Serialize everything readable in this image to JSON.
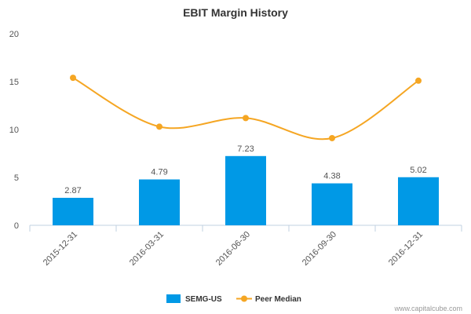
{
  "chart_data": {
    "type": "bar",
    "title": "EBIT Margin History",
    "categories": [
      "2015-12-31",
      "2016-03-31",
      "2016-06-30",
      "2016-09-30",
      "2016-12-31"
    ],
    "ylim": [
      0,
      20
    ],
    "yticks": [
      0,
      5,
      10,
      15,
      20
    ],
    "grid": false,
    "legend_position": "bottom-center",
    "series": [
      {
        "name": "SEMG-US",
        "kind": "bar",
        "color": "#0099e6",
        "values": [
          2.87,
          4.79,
          7.23,
          4.38,
          5.02
        ],
        "labels": [
          "2.87",
          "4.79",
          "7.23",
          "4.38",
          "5.02"
        ]
      },
      {
        "name": "Peer Median",
        "kind": "line",
        "color": "#f5a623",
        "values": [
          15.4,
          10.3,
          11.2,
          9.1,
          15.1
        ]
      }
    ]
  },
  "credit": "www.capitalcube.com"
}
